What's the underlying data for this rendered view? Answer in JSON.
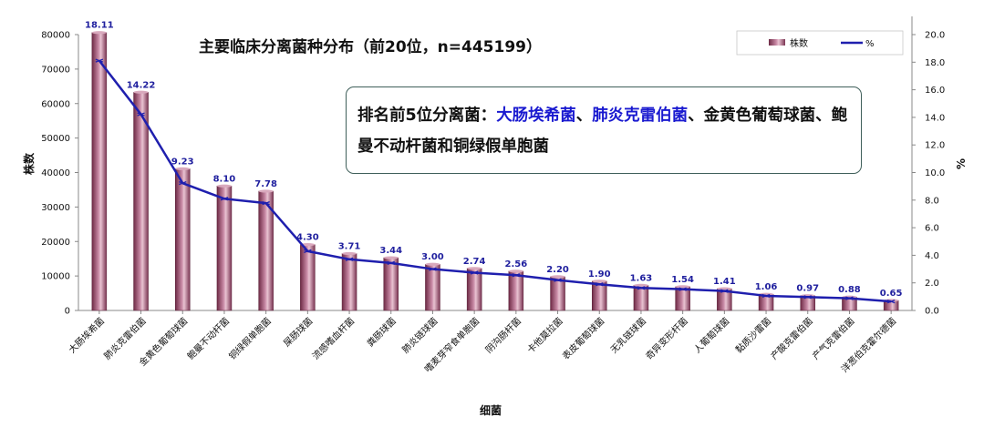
{
  "chart_data": {
    "type": "bar",
    "title": "主要临床分离菌种分布（前20位，n=445199）",
    "xlabel": "细菌",
    "ylabel": "株数",
    "y2label": "%",
    "ylim": [
      0,
      80000
    ],
    "y2lim": [
      0,
      20
    ],
    "yticks": [
      "0",
      "10000",
      "20000",
      "30000",
      "40000",
      "50000",
      "60000",
      "70000",
      "80000"
    ],
    "y2ticks": [
      "0.0",
      "2.0",
      "4.0",
      "6.0",
      "8.0",
      "10.0",
      "12.0",
      "14.0",
      "16.0",
      "18.0",
      "20.0"
    ],
    "legend_position": "top-right",
    "grid": false,
    "categories": [
      "大肠埃希菌",
      "肺炎克雷伯菌",
      "金黄色葡萄球菌",
      "鲍曼不动杆菌",
      "铜绿假单胞菌",
      "屎肠球菌",
      "流感嗜血杆菌",
      "粪肠球菌",
      "肺炎链球菌",
      "嗜麦芽窄食单胞菌",
      "阴沟肠杆菌",
      "卡他莫拉菌",
      "表皮葡萄球菌",
      "无乳链球菌",
      "奇异变形杆菌",
      "人葡萄球菌",
      "黏质沙雷菌",
      "产酸克雷伯菌",
      "产气克雷伯菌",
      "洋葱伯克霍尔德菌"
    ],
    "series": [
      {
        "name": "株数",
        "kind": "bar",
        "color": "#a0506e",
        "values": [
          80600,
          63300,
          41100,
          36100,
          34600,
          19100,
          16500,
          15300,
          13400,
          12200,
          11400,
          9800,
          8500,
          7300,
          6900,
          6300,
          4700,
          4300,
          3900,
          2900
        ]
      },
      {
        "name": "%",
        "kind": "line",
        "axis": "right",
        "color": "#1f1fae",
        "values": [
          18.11,
          14.22,
          9.23,
          8.1,
          7.78,
          4.3,
          3.71,
          3.44,
          3.0,
          2.74,
          2.56,
          2.2,
          1.9,
          1.63,
          1.54,
          1.41,
          1.06,
          0.97,
          0.88,
          0.65
        ],
        "labels": [
          "18.11",
          "14.22",
          "9.23",
          "8.10",
          "7.78",
          "4.30",
          "3.71",
          "3.44",
          "3.00",
          "2.74",
          "2.56",
          "2.20",
          "1.90",
          "1.63",
          "1.54",
          "1.41",
          "1.06",
          "0.97",
          "0.88",
          "0.65"
        ]
      }
    ]
  },
  "note": {
    "prefix": "排名前5位分离菌：",
    "hl1": "大肠埃希菌",
    "sep1": "、",
    "hl2": "肺炎克雷伯菌",
    "rest": "、金黄色葡萄球菌、鲍曼不动杆菌和铜绿假单胞菌"
  }
}
